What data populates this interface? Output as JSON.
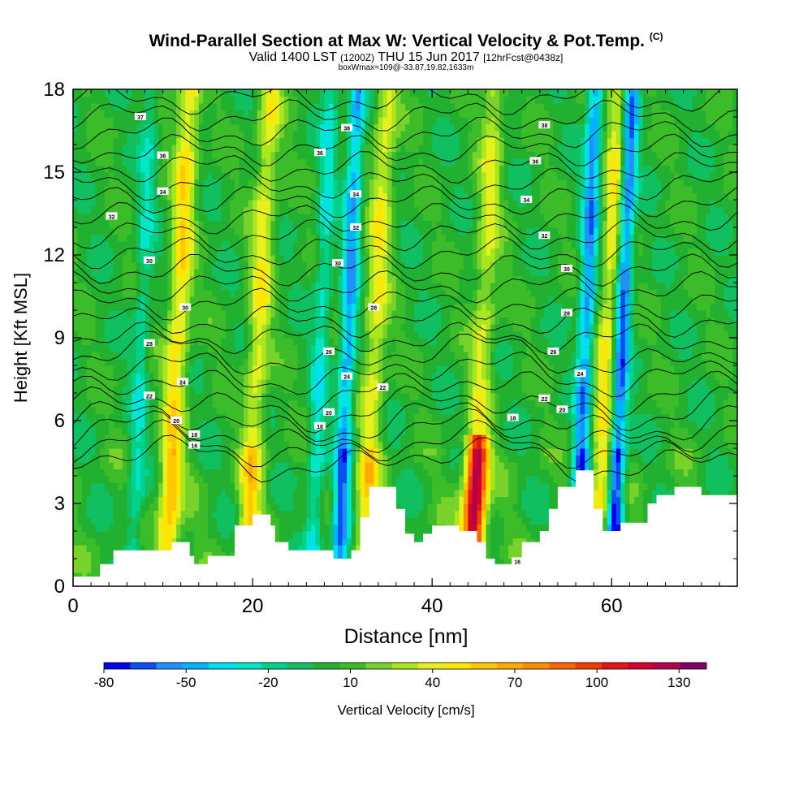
{
  "header": {
    "title": "Wind-Parallel Section at Max W: Vertical Velocity & Pot.Temp.",
    "copyright": "(C)",
    "valid_prefix": "Valid 1400 LST",
    "valid_utc": "(1200Z)",
    "valid_date": "THU 15 Jun 2017",
    "forecast": "[12hrFcst@0438z]",
    "box_info": "boxWmax=109@-33.87,19.82,1633m"
  },
  "chart_data": {
    "type": "heatmap",
    "xlabel": "Distance [nm]",
    "ylabel": "Height [Kft MSL]",
    "xlim": [
      0,
      74
    ],
    "ylim": [
      0,
      18
    ],
    "x_ticks": [
      "0",
      "20",
      "40",
      "60"
    ],
    "x_tick_values": [
      0,
      20,
      40,
      60
    ],
    "y_ticks": [
      "0",
      "3",
      "6",
      "9",
      "12",
      "15",
      "18"
    ],
    "y_tick_values": [
      0,
      3,
      6,
      9,
      12,
      15,
      18
    ],
    "colorbar": {
      "label": "Vertical Velocity [cm/s]",
      "tick_labels": [
        "-80",
        "-50",
        "-20",
        "10",
        "40",
        "70",
        "100",
        "130"
      ],
      "tick_values": [
        -80,
        -50,
        -20,
        10,
        40,
        70,
        100,
        130
      ],
      "levels": [
        -80,
        -70,
        -60,
        -50,
        -40,
        -30,
        -20,
        -10,
        0,
        10,
        20,
        30,
        40,
        50,
        60,
        70,
        80,
        90,
        100,
        110,
        120,
        130,
        140
      ],
      "colors": [
        "#0000f0",
        "#0a50f0",
        "#1e90ff",
        "#00b4ff",
        "#00e0f0",
        "#00e6c8",
        "#00d28c",
        "#10c060",
        "#22b030",
        "#3cbc28",
        "#78d22a",
        "#aae61e",
        "#e6f01e",
        "#ffe600",
        "#ffc800",
        "#ffaa00",
        "#ff8c00",
        "#ff6400",
        "#f03c00",
        "#e61414",
        "#d2002d",
        "#b4004b",
        "#820064"
      ]
    },
    "w_max": 109,
    "updraft_columns": [
      {
        "x_nm": 11.5,
        "w_cms": 55
      },
      {
        "x_nm": 20.5,
        "w_cms": 45
      },
      {
        "x_nm": 33.5,
        "w_cms": 45
      },
      {
        "x_nm": 45.5,
        "w_cms": 109
      },
      {
        "x_nm": 59.5,
        "w_cms": 50
      }
    ],
    "downdraft_columns": [
      {
        "x_nm": 7.5,
        "w_cms": -25
      },
      {
        "x_nm": 27.5,
        "w_cms": -30
      },
      {
        "x_nm": 30.5,
        "w_cms": -55
      },
      {
        "x_nm": 57,
        "w_cms": -60
      },
      {
        "x_nm": 61,
        "w_cms": -75
      }
    ],
    "terrain_profile": [
      [
        0,
        0.35
      ],
      [
        3,
        0.35
      ],
      [
        3,
        0.8
      ],
      [
        4.5,
        0.8
      ],
      [
        4.5,
        1.3
      ],
      [
        11,
        1.3
      ],
      [
        11,
        1.6
      ],
      [
        13,
        1.6
      ],
      [
        13,
        1.1
      ],
      [
        13.5,
        1.1
      ],
      [
        13.5,
        0.8
      ],
      [
        15,
        0.8
      ],
      [
        15,
        1.1
      ],
      [
        18,
        1.1
      ],
      [
        18,
        2.2
      ],
      [
        20,
        2.2
      ],
      [
        20,
        2.6
      ],
      [
        22,
        2.6
      ],
      [
        22,
        2.2
      ],
      [
        22.5,
        2.2
      ],
      [
        22.5,
        1.6
      ],
      [
        24,
        1.6
      ],
      [
        24,
        1.3
      ],
      [
        29,
        1.3
      ],
      [
        29,
        1.0
      ],
      [
        31,
        1.0
      ],
      [
        31,
        1.3
      ],
      [
        32,
        1.3
      ],
      [
        32,
        2.5
      ],
      [
        33,
        2.5
      ],
      [
        33,
        3.6
      ],
      [
        36,
        3.6
      ],
      [
        36,
        2.8
      ],
      [
        37,
        2.8
      ],
      [
        37,
        1.9
      ],
      [
        38,
        1.9
      ],
      [
        38,
        1.6
      ],
      [
        39,
        1.6
      ],
      [
        39,
        1.9
      ],
      [
        40,
        1.9
      ],
      [
        40,
        2.2
      ],
      [
        43,
        2.2
      ],
      [
        43,
        2.0
      ],
      [
        45,
        2.0
      ],
      [
        45,
        1.6
      ],
      [
        46,
        1.6
      ],
      [
        46,
        1.0
      ],
      [
        47,
        1.0
      ],
      [
        47,
        0.8
      ],
      [
        50,
        0.8
      ],
      [
        50,
        1.6
      ],
      [
        52,
        1.6
      ],
      [
        52,
        2.0
      ],
      [
        53,
        2.0
      ],
      [
        53,
        2.8
      ],
      [
        54,
        2.8
      ],
      [
        54,
        3.6
      ],
      [
        56,
        3.6
      ],
      [
        56,
        4.2
      ],
      [
        58,
        4.2
      ],
      [
        58,
        2.8
      ],
      [
        59,
        2.8
      ],
      [
        59,
        2.0
      ],
      [
        61,
        2.0
      ],
      [
        61,
        2.3
      ],
      [
        64,
        2.3
      ],
      [
        64,
        3.0
      ],
      [
        65,
        3.0
      ],
      [
        65,
        3.3
      ],
      [
        67,
        3.3
      ],
      [
        67,
        3.6
      ],
      [
        70,
        3.6
      ],
      [
        70,
        3.3
      ],
      [
        74,
        3.3
      ]
    ],
    "theta_contour_labels": [
      {
        "x": 7.5,
        "y": 17.0,
        "text": "37"
      },
      {
        "x": 10.0,
        "y": 15.6,
        "text": "36"
      },
      {
        "x": 10.0,
        "y": 14.3,
        "text": "34"
      },
      {
        "x": 4.3,
        "y": 13.4,
        "text": "32"
      },
      {
        "x": 8.5,
        "y": 11.8,
        "text": "30"
      },
      {
        "x": 12.5,
        "y": 10.1,
        "text": "30"
      },
      {
        "x": 8.5,
        "y": 8.8,
        "text": "28"
      },
      {
        "x": 12.2,
        "y": 7.4,
        "text": "24"
      },
      {
        "x": 8.5,
        "y": 6.9,
        "text": "22"
      },
      {
        "x": 11.5,
        "y": 6.0,
        "text": "20"
      },
      {
        "x": 13.5,
        "y": 5.5,
        "text": "18"
      },
      {
        "x": 13.5,
        "y": 5.1,
        "text": "16"
      },
      {
        "x": 30.5,
        "y": 16.6,
        "text": "38"
      },
      {
        "x": 27.5,
        "y": 15.7,
        "text": "36"
      },
      {
        "x": 31.5,
        "y": 14.2,
        "text": "34"
      },
      {
        "x": 31.5,
        "y": 13.0,
        "text": "32"
      },
      {
        "x": 29.5,
        "y": 11.7,
        "text": "30"
      },
      {
        "x": 33.5,
        "y": 10.1,
        "text": "28"
      },
      {
        "x": 28.5,
        "y": 8.5,
        "text": "26"
      },
      {
        "x": 30.5,
        "y": 7.6,
        "text": "24"
      },
      {
        "x": 34.5,
        "y": 7.2,
        "text": "22"
      },
      {
        "x": 28.5,
        "y": 6.3,
        "text": "20"
      },
      {
        "x": 27.5,
        "y": 5.8,
        "text": "18"
      },
      {
        "x": 52.5,
        "y": 16.7,
        "text": "38"
      },
      {
        "x": 51.5,
        "y": 15.4,
        "text": "36"
      },
      {
        "x": 50.5,
        "y": 14.0,
        "text": "34"
      },
      {
        "x": 52.5,
        "y": 12.7,
        "text": "32"
      },
      {
        "x": 55.0,
        "y": 11.5,
        "text": "30"
      },
      {
        "x": 55.0,
        "y": 9.9,
        "text": "28"
      },
      {
        "x": 53.5,
        "y": 8.5,
        "text": "26"
      },
      {
        "x": 56.5,
        "y": 7.7,
        "text": "24"
      },
      {
        "x": 52.5,
        "y": 6.8,
        "text": "22"
      },
      {
        "x": 54.5,
        "y": 6.4,
        "text": "20"
      },
      {
        "x": 49.0,
        "y": 6.1,
        "text": "18"
      },
      {
        "x": 49.5,
        "y": 0.9,
        "text": "16"
      }
    ]
  }
}
